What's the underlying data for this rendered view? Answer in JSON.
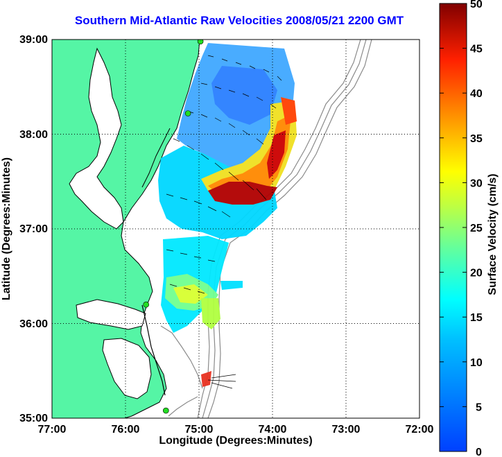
{
  "title": "Southern Mid-Atlantic Raw Velocities 2008/05/21 2200 GMT",
  "x_axis": {
    "label": "Longitude (Degrees:Minutes)",
    "ticks": [
      "77:00",
      "76:00",
      "75:00",
      "74:00",
      "73:00",
      "72:00"
    ]
  },
  "y_axis": {
    "label": "Latitude (Degrees:Minutes)",
    "ticks": [
      "39:00",
      "38:00",
      "37:00",
      "36:00",
      "35:00"
    ]
  },
  "colorbar": {
    "label": "Surface Velocity (cm/s)",
    "ticks": [
      "50",
      "45",
      "40",
      "35",
      "30",
      "25",
      "20",
      "15",
      "10",
      "5",
      "0"
    ],
    "min": 0,
    "max": 50,
    "colormap": "jet"
  },
  "colors": {
    "title": "#0000ff",
    "land": "#55f5a5",
    "coast_outline": "#000000",
    "bathymetry": "#888888",
    "station_marker": "#22dd22",
    "grid": "#000000"
  },
  "grid_style": "dotted",
  "station_markers": [
    {
      "lon": -74.98,
      "lat": 38.98
    },
    {
      "lon": -75.15,
      "lat": 38.22
    },
    {
      "lon": -75.72,
      "lat": 36.2
    },
    {
      "lon": -75.45,
      "lat": 35.08
    }
  ]
}
